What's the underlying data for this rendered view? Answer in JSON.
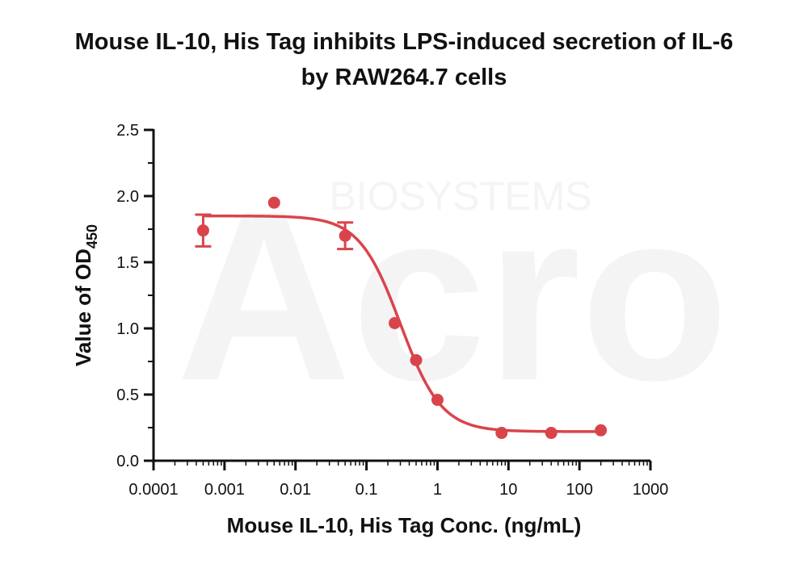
{
  "title": {
    "line1": "Mouse IL-10, His Tag inhibits LPS-induced secretion of IL-6",
    "line2": "by RAW264.7 cells"
  },
  "watermark": {
    "brand": "Acro",
    "sub": "BIOSYSTEMS"
  },
  "chart_data": {
    "type": "scatter",
    "title": "Mouse IL-10, His Tag inhibits LPS-induced secretion of IL-6 by RAW264.7 cells",
    "xlabel": "Mouse IL-10, His Tag Conc. (ng/mL)",
    "ylabel_main": "Value of OD",
    "ylabel_sub": "450",
    "x_scale": "log",
    "xlim": [
      0.0001,
      1000
    ],
    "ylim": [
      0.0,
      2.5
    ],
    "x_tick_labels": [
      "0.0001",
      "0.001",
      "0.01",
      "0.1",
      "1",
      "10",
      "100",
      "1000"
    ],
    "x_tick_values": [
      0.0001,
      0.001,
      0.01,
      0.1,
      1,
      10,
      100,
      1000
    ],
    "y_tick_labels": [
      "0.0",
      "0.5",
      "1.0",
      "1.5",
      "2.0",
      "2.5"
    ],
    "y_tick_values": [
      0.0,
      0.5,
      1.0,
      1.5,
      2.0,
      2.5
    ],
    "color": "#d9444b",
    "points": [
      {
        "x": 0.0005,
        "y": 1.74,
        "err": 0.12
      },
      {
        "x": 0.005,
        "y": 1.95,
        "err": 0
      },
      {
        "x": 0.05,
        "y": 1.7,
        "err": 0.1
      },
      {
        "x": 0.25,
        "y": 1.04,
        "err": 0
      },
      {
        "x": 0.5,
        "y": 0.76,
        "err": 0
      },
      {
        "x": 1,
        "y": 0.46,
        "err": 0
      },
      {
        "x": 8,
        "y": 0.21,
        "err": 0
      },
      {
        "x": 40,
        "y": 0.21,
        "err": 0
      },
      {
        "x": 200,
        "y": 0.23,
        "err": 0
      }
    ],
    "fit": {
      "model": "4PL",
      "top": 1.85,
      "bottom": 0.22,
      "ec50": 0.3,
      "hill": 1.5,
      "x_range": [
        0.0005,
        200
      ]
    },
    "grid": false,
    "legend": "none"
  }
}
